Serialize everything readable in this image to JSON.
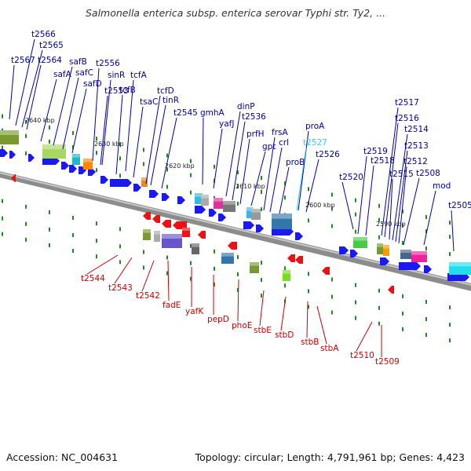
{
  "header": {
    "title": "Salmonella enterica subsp. enterica serovar Typhi str. Ty2, ..."
  },
  "footer": {
    "accession": "Accession: NC_004631",
    "summary": "Topology: circular; Length: 4,791,961 bp; Genes: 4,423"
  },
  "colors": {
    "forward_label": "#0000aa",
    "reverse_label": "#cc0000",
    "highlight_label": "#33ccff",
    "tick": "#228822",
    "backbone": "#888888"
  },
  "kbp_labels": [
    "2640 kbp",
    "2630 kbp",
    "2620 kbp",
    "2610 kbp",
    "2600 kbp",
    "2590 kbp"
  ],
  "forward_genes": [
    "t2567",
    "t2566",
    "t2565",
    "t2564",
    "safA",
    "safB",
    "safC",
    "safD",
    "t2556",
    "sinR",
    "t2553",
    "tcfB",
    "tcfA",
    "tsaC",
    "tcfD",
    "tinR",
    "t2545",
    "gmhA",
    "yafJ",
    "dinP",
    "t2536",
    "prfH",
    "gpt",
    "frsA",
    "crl",
    "proB",
    "proA",
    "t2527",
    "t2526",
    "t2520",
    "t2519",
    "t2518",
    "t2517",
    "t2516",
    "t2515",
    "t2514",
    "t2513",
    "t2512",
    "t2508",
    "mod",
    "t2505"
  ],
  "highlight_genes": [
    "t2527"
  ],
  "reverse_genes": [
    "t2544",
    "t2543",
    "t2542",
    "fadE",
    "yafK",
    "pepD",
    "phoE",
    "stbE",
    "stbD",
    "stbB",
    "stbA",
    "t2510",
    "t2509"
  ]
}
